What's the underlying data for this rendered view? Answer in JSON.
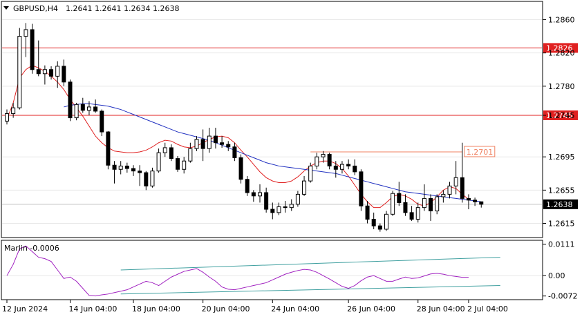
{
  "header": {
    "symbol": "GBPUSD,H4",
    "ohlc": "1.2641 1.2641 1.2634 1.2638"
  },
  "indicator": {
    "label": "Marlin -0.0006"
  },
  "chart_data": [
    {
      "type": "candlestick",
      "title": "GBPUSD,H4",
      "ylim": [
        1.2598,
        1.2882
      ],
      "y_ticks": [
        "1.2860",
        "1.2820",
        "1.2780",
        "1.2745",
        "1.2695",
        "1.2655",
        "1.2615"
      ],
      "x_ticks": [
        "12 Jun 2024",
        "14 Jun 04:00",
        "18 Jun 04:00",
        "20 Jun 04:00",
        "24 Jun 04:00",
        "26 Jun 04:00",
        "28 Jun 04:00",
        "2 Jul 04:00"
      ],
      "last_price": "1.2638",
      "last_price_value": 1.2638,
      "levels": [
        {
          "value": 1.2826,
          "label": "1.2826",
          "color": "#e02020"
        },
        {
          "value": 1.2745,
          "label": "1.2745",
          "color": "#e02020"
        }
      ],
      "annotation": {
        "value": 1.2701,
        "label": "1.2701",
        "color": "#f08060"
      },
      "colors": {
        "up": "#ffffff",
        "down": "#000000",
        "fast_ma": "#e02020",
        "slow_ma": "#2030c0",
        "grid": "#e8e8e8"
      },
      "candles": [
        [
          1.2738,
          1.2752,
          1.2734,
          1.2747
        ],
        [
          1.2747,
          1.276,
          1.2742,
          1.2754
        ],
        [
          1.2754,
          1.285,
          1.2752,
          1.284
        ],
        [
          1.284,
          1.2856,
          1.2815,
          1.2848
        ],
        [
          1.2848,
          1.2855,
          1.2795,
          1.28
        ],
        [
          1.28,
          1.2835,
          1.2792,
          1.2795
        ],
        [
          1.2795,
          1.2805,
          1.2782,
          1.28
        ],
        [
          1.28,
          1.2804,
          1.2788,
          1.2792
        ],
        [
          1.2792,
          1.281,
          1.2778,
          1.2804
        ],
        [
          1.2804,
          1.2812,
          1.278,
          1.2785
        ],
        [
          1.2785,
          1.2788,
          1.2738,
          1.2742
        ],
        [
          1.2742,
          1.276,
          1.2739,
          1.2758
        ],
        [
          1.2758,
          1.2766,
          1.2748,
          1.2751
        ],
        [
          1.2751,
          1.2762,
          1.2745,
          1.2755
        ],
        [
          1.2755,
          1.2764,
          1.2748,
          1.275
        ],
        [
          1.275,
          1.2752,
          1.272,
          1.2725
        ],
        [
          1.2725,
          1.2726,
          1.268,
          1.2685
        ],
        [
          1.2685,
          1.269,
          1.2663,
          1.268
        ],
        [
          1.268,
          1.269,
          1.2674,
          1.2684
        ],
        [
          1.2684,
          1.2688,
          1.2676,
          1.2681
        ],
        [
          1.2681,
          1.2685,
          1.2672,
          1.2678
        ],
        [
          1.2678,
          1.2685,
          1.266,
          1.2676
        ],
        [
          1.2676,
          1.2678,
          1.2655,
          1.266
        ],
        [
          1.266,
          1.2682,
          1.2658,
          1.2678
        ],
        [
          1.2678,
          1.2705,
          1.2676,
          1.27
        ],
        [
          1.27,
          1.2712,
          1.2695,
          1.2706
        ],
        [
          1.2706,
          1.271,
          1.269,
          1.2693
        ],
        [
          1.2693,
          1.2696,
          1.2677,
          1.268
        ],
        [
          1.268,
          1.2695,
          1.2675,
          1.269
        ],
        [
          1.269,
          1.2712,
          1.2688,
          1.2705
        ],
        [
          1.2705,
          1.272,
          1.2702,
          1.2716
        ],
        [
          1.2716,
          1.2728,
          1.269,
          1.2705
        ],
        [
          1.2705,
          1.273,
          1.27,
          1.272
        ],
        [
          1.272,
          1.273,
          1.2705,
          1.2712
        ],
        [
          1.2712,
          1.272,
          1.2706,
          1.271
        ],
        [
          1.271,
          1.2714,
          1.2702,
          1.2707
        ],
        [
          1.2707,
          1.2712,
          1.269,
          1.2694
        ],
        [
          1.2694,
          1.2698,
          1.2663,
          1.2668
        ],
        [
          1.2668,
          1.2672,
          1.2648,
          1.2652
        ],
        [
          1.2652,
          1.2655,
          1.2641,
          1.2648
        ],
        [
          1.2648,
          1.2662,
          1.264,
          1.2652
        ],
        [
          1.2652,
          1.2658,
          1.2628,
          1.2632
        ],
        [
          1.2632,
          1.264,
          1.262,
          1.2628
        ],
        [
          1.2628,
          1.264,
          1.2625,
          1.2635
        ],
        [
          1.2635,
          1.2642,
          1.2628,
          1.2634
        ],
        [
          1.2634,
          1.2644,
          1.263,
          1.2638
        ],
        [
          1.2638,
          1.2654,
          1.2635,
          1.265
        ],
        [
          1.265,
          1.2672,
          1.2648,
          1.2666
        ],
        [
          1.2666,
          1.2688,
          1.2664,
          1.2684
        ],
        [
          1.2684,
          1.27,
          1.268,
          1.2695
        ],
        [
          1.2695,
          1.2702,
          1.2688,
          1.2698
        ],
        [
          1.2698,
          1.27,
          1.268,
          1.2684
        ],
        [
          1.2684,
          1.269,
          1.267,
          1.268
        ],
        [
          1.268,
          1.269,
          1.2675,
          1.2686
        ],
        [
          1.2686,
          1.2692,
          1.268,
          1.2684
        ],
        [
          1.2684,
          1.2692,
          1.2673,
          1.2677
        ],
        [
          1.2677,
          1.268,
          1.263,
          1.2636
        ],
        [
          1.2636,
          1.2642,
          1.2615,
          1.262
        ],
        [
          1.262,
          1.2628,
          1.2608,
          1.2612
        ],
        [
          1.2612,
          1.2615,
          1.2605,
          1.2608
        ],
        [
          1.2608,
          1.263,
          1.2606,
          1.2626
        ],
        [
          1.2626,
          1.2654,
          1.2624,
          1.2651
        ],
        [
          1.2651,
          1.2665,
          1.2636,
          1.264
        ],
        [
          1.264,
          1.265,
          1.2624,
          1.2628
        ],
        [
          1.2628,
          1.2636,
          1.2618,
          1.262
        ],
        [
          1.262,
          1.264,
          1.2616,
          1.2634
        ],
        [
          1.2634,
          1.2662,
          1.263,
          1.2645
        ],
        [
          1.2645,
          1.265,
          1.2618,
          1.263
        ],
        [
          1.263,
          1.265,
          1.2626,
          1.2647
        ],
        [
          1.2647,
          1.2655,
          1.264,
          1.265
        ],
        [
          1.265,
          1.2665,
          1.2645,
          1.266
        ],
        [
          1.266,
          1.269,
          1.265,
          1.267
        ],
        [
          1.267,
          1.2712,
          1.264,
          1.2645
        ],
        [
          1.2645,
          1.265,
          1.2632,
          1.2643
        ],
        [
          1.2643,
          1.2646,
          1.2636,
          1.2641
        ],
        [
          1.2641,
          1.2641,
          1.2634,
          1.2638
        ]
      ],
      "series": [
        {
          "name": "fast_ma",
          "values": [
            1.274,
            1.276,
            1.279,
            1.28,
            1.2805,
            1.2802,
            1.2798,
            1.2792,
            1.2785,
            1.2776,
            1.2764,
            1.2754,
            1.2744,
            1.2732,
            1.272,
            1.2712,
            1.2706,
            1.2702,
            1.2701,
            1.27,
            1.27,
            1.2701,
            1.2703,
            1.2707,
            1.2712,
            1.2715,
            1.2714,
            1.271,
            1.2707,
            1.2706,
            1.2708,
            1.2712,
            1.2716,
            1.2719,
            1.272,
            1.2718,
            1.2712,
            1.2703,
            1.2695,
            1.2686,
            1.2677,
            1.267,
            1.2666,
            1.2664,
            1.2664,
            1.2666,
            1.2671,
            1.2678,
            1.2684,
            1.2688,
            1.269,
            1.269,
            1.2687,
            1.2681,
            1.2672,
            1.2661,
            1.265,
            1.2641,
            1.2634,
            1.2634,
            1.264,
            1.2647,
            1.265,
            1.2648,
            1.2644,
            1.2638,
            1.2636,
            1.264,
            1.2647,
            1.2655,
            1.2659,
            1.2657,
            1.265,
            1.2644
          ]
        },
        {
          "name": "slow_ma",
          "values": [
            1.2755,
            1.2757,
            1.2758,
            1.2759,
            1.2759,
            1.2758,
            1.2757,
            1.2756,
            1.2754,
            1.2752,
            1.2749,
            1.2746,
            1.2743,
            1.274,
            1.2737,
            1.2734,
            1.2731,
            1.2728,
            1.2725,
            1.2723,
            1.2721,
            1.2719,
            1.2717,
            1.2715,
            1.2712,
            1.2709,
            1.2706,
            1.2703,
            1.27,
            1.2697,
            1.2694,
            1.2691,
            1.2688,
            1.2686,
            1.2684,
            1.2683,
            1.2682,
            1.2681,
            1.268,
            1.2679,
            1.2678,
            1.2677,
            1.2676,
            1.2675,
            1.2673,
            1.2671,
            1.2669,
            1.2667,
            1.2665,
            1.2663,
            1.2661,
            1.2659,
            1.2657,
            1.2655,
            1.2653,
            1.2652,
            1.2651,
            1.265,
            1.2649,
            1.2648,
            1.2647,
            1.2646,
            1.2645,
            1.2644,
            1.2643,
            1.2642,
            1.2641
          ]
        }
      ]
    },
    {
      "type": "line",
      "title": "Marlin -0.0006",
      "ylim": [
        -0.0085,
        0.0125
      ],
      "y_ticks": [
        "0.0111",
        "0.00",
        "-0.0072"
      ],
      "zero_line": 0.0,
      "series": [
        {
          "name": "Marlin",
          "color": "#a020c0",
          "values": [
            0.0,
            0.004,
            0.0095,
            0.0105,
            0.0085,
            0.0065,
            0.006,
            0.005,
            0.002,
            -0.001,
            -0.0005,
            -0.002,
            -0.0045,
            -0.007,
            -0.0072,
            -0.0068,
            -0.0065,
            -0.006,
            -0.0055,
            -0.005,
            -0.004,
            -0.003,
            -0.002,
            -0.0025,
            -0.0035,
            -0.002,
            -0.0005,
            0.0005,
            0.0015,
            0.002,
            0.0025,
            0.0012,
            -0.0005,
            -0.002,
            -0.004,
            -0.0048,
            -0.005,
            -0.0045,
            -0.004,
            -0.0035,
            -0.003,
            -0.0025,
            -0.0015,
            -0.0005,
            0.0005,
            0.0012,
            0.0018,
            0.0022,
            0.002,
            0.0012,
            0.0,
            -0.0012,
            -0.0025,
            -0.0038,
            -0.0045,
            -0.0035,
            -0.0018,
            -0.0005,
            0.0,
            -0.001,
            -0.002,
            -0.002,
            -0.0012,
            -0.0005,
            -0.001,
            -0.0008,
            -0.0001,
            0.0006,
            0.0008,
            0.0005,
            0.0,
            -0.0003,
            -0.0006,
            -0.0006
          ]
        },
        {
          "name": "channel_upper",
          "color": "#40a0a0",
          "values": [
            0.002,
            0.0065
          ]
        },
        {
          "name": "channel_lower",
          "color": "#40a0a0",
          "values": [
            -0.0065,
            -0.0035
          ]
        }
      ]
    }
  ]
}
